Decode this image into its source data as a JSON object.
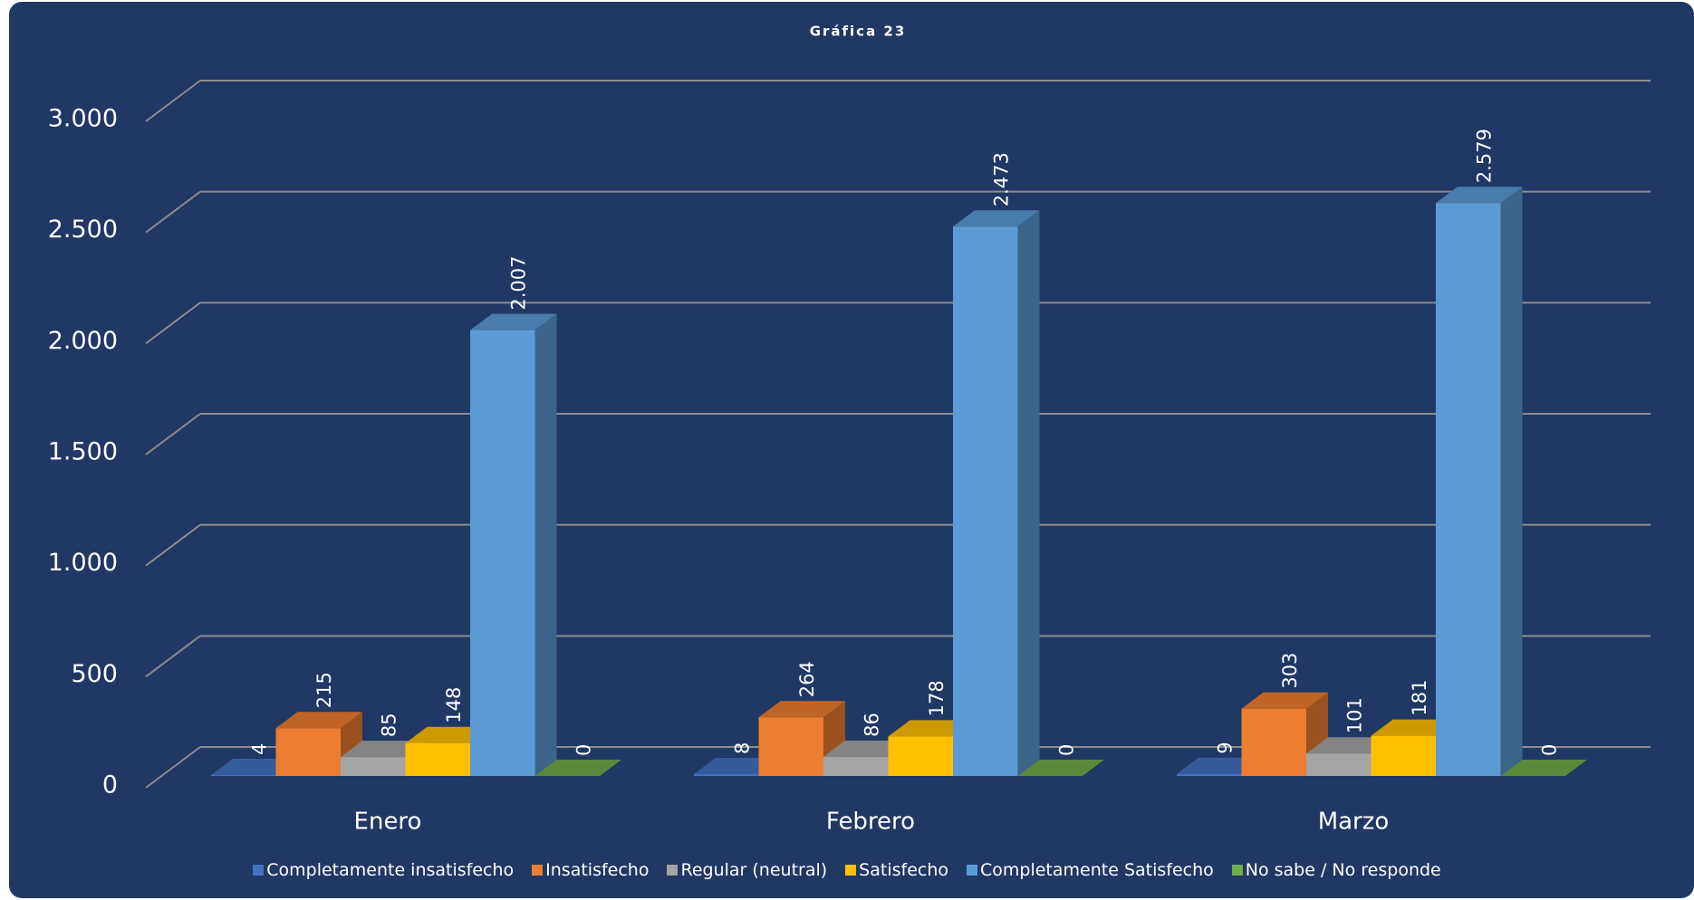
{
  "chart_data": {
    "type": "bar3d",
    "title": "Gráfica 23",
    "categories": [
      "Enero",
      "Febrero",
      "Marzo"
    ],
    "series": [
      {
        "name": "Completamente insatisfecho",
        "color": "#4472c4",
        "values": [
          4,
          8,
          9
        ]
      },
      {
        "name": "Insatisfecho",
        "color": "#ed7d31",
        "values": [
          215,
          264,
          303
        ]
      },
      {
        "name": "Regular (neutral)",
        "color": "#a5a5a5",
        "values": [
          85,
          86,
          101
        ]
      },
      {
        "name": "Satisfecho",
        "color": "#ffc000",
        "values": [
          148,
          178,
          181
        ]
      },
      {
        "name": "Completamente Satisfecho",
        "color": "#5b9bd5",
        "values": [
          2007,
          2473,
          2579
        ],
        "value_labels": [
          "2.007",
          "2.473",
          "2.579"
        ]
      },
      {
        "name": "No sabe / No responde",
        "color": "#70ad47",
        "values": [
          0,
          0,
          0
        ]
      }
    ],
    "ylim": [
      0,
      3000
    ],
    "yticks": [
      {
        "value": 0,
        "label": "0"
      },
      {
        "value": 500,
        "label": "500"
      },
      {
        "value": 1000,
        "label": "1.000"
      },
      {
        "value": 1500,
        "label": "1.500"
      },
      {
        "value": 2000,
        "label": "2.000"
      },
      {
        "value": 2500,
        "label": "2.500"
      },
      {
        "value": 3000,
        "label": "3.000"
      }
    ],
    "grid": true,
    "legend": "bottom"
  }
}
